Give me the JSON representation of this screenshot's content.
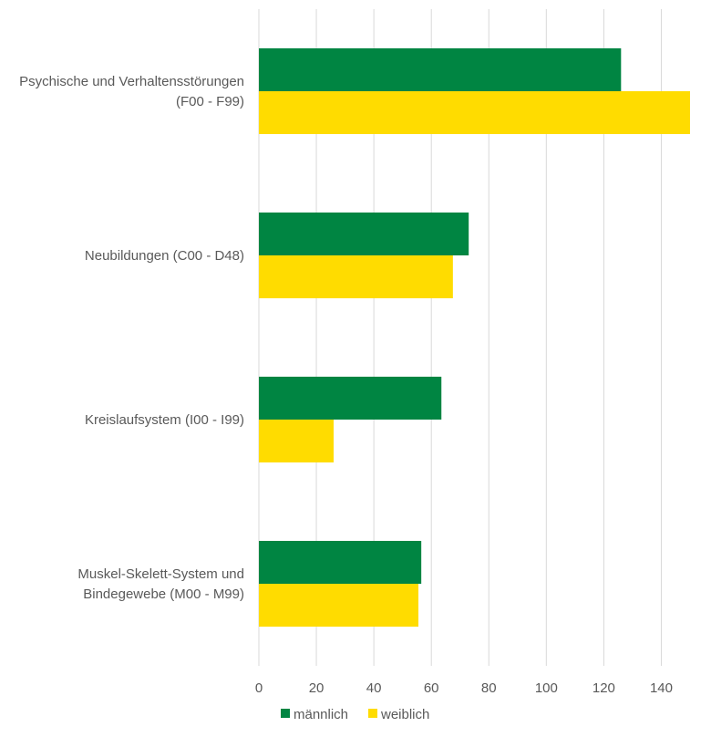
{
  "chart_data": {
    "type": "bar",
    "orientation": "horizontal",
    "categories": [
      [
        "Psychische und Verhaltensstörungen",
        "(F00 - F99)"
      ],
      [
        "Neubildungen (C00 - D48)"
      ],
      [
        "Kreislaufsystem (I00 - I99)"
      ],
      [
        "Muskel-Skelett-System und",
        "Bindegewebe (M00 - M99)"
      ]
    ],
    "series": [
      {
        "name": "männlich",
        "color": "#008542",
        "values": [
          126,
          73,
          63.5,
          56.5
        ]
      },
      {
        "name": "weiblich",
        "color": "#FFDC00",
        "values": [
          150,
          67.5,
          26,
          55.5
        ]
      }
    ],
    "xlim": [
      0,
      150
    ],
    "xticks": [
      "0",
      "20",
      "40",
      "60",
      "80",
      "100",
      "120",
      "140"
    ],
    "grid": "vertical",
    "legend_position": "bottom",
    "title": "",
    "xlabel": "",
    "ylabel": ""
  }
}
